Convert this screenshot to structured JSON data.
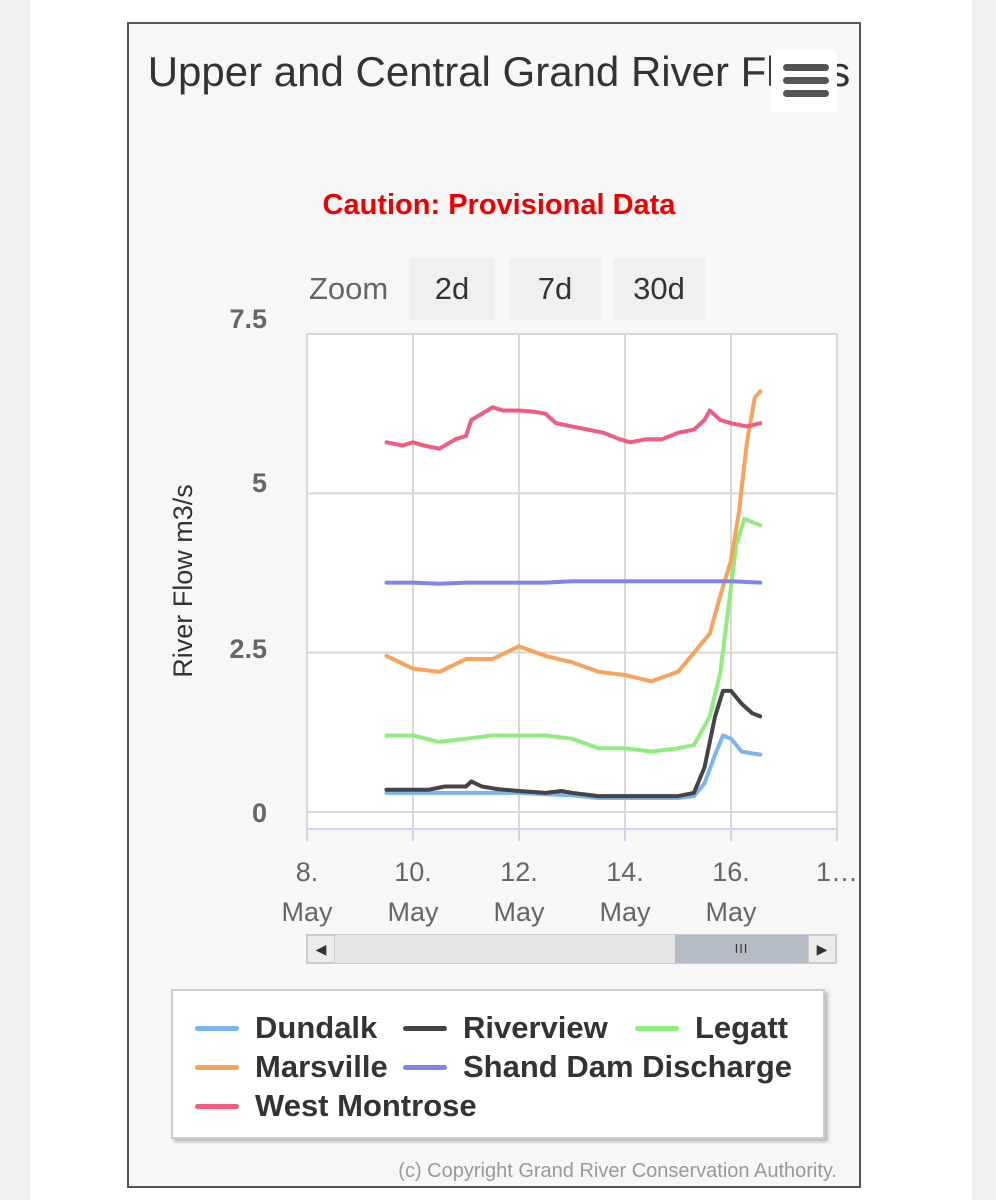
{
  "chart_data": {
    "type": "line",
    "title": "Upper and Central Grand River Flows",
    "subtitle": "Caution: Provisional Data",
    "ylabel": "River Flow m3/s",
    "xlabel": "",
    "ylim": [
      0,
      7.5
    ],
    "xlim": [
      "8. May",
      "18. May"
    ],
    "grid": true,
    "legend": "bottom",
    "y_ticks": [
      "0",
      "2.5",
      "5",
      "7.5"
    ],
    "x_ticks": [
      {
        "day": 8,
        "line1": "8.",
        "line2": "May"
      },
      {
        "day": 10,
        "line1": "10.",
        "line2": "May"
      },
      {
        "day": 12,
        "line1": "12.",
        "line2": "May"
      },
      {
        "day": 14,
        "line1": "14.",
        "line2": "May"
      },
      {
        "day": 16,
        "line1": "16.",
        "line2": "May"
      },
      {
        "day": 18,
        "line1": "1…",
        "line2": ""
      }
    ],
    "series": [
      {
        "name": "Dundalk",
        "color": "#7cb5ec",
        "x": [
          9.5,
          10.0,
          10.5,
          11.0,
          11.5,
          12.0,
          12.5,
          13.0,
          13.5,
          14.0,
          14.5,
          15.0,
          15.3,
          15.5,
          15.7,
          15.85,
          16.0,
          16.2,
          16.4,
          16.55
        ],
        "y": [
          0.3,
          0.3,
          0.3,
          0.3,
          0.3,
          0.3,
          0.28,
          0.26,
          0.22,
          0.22,
          0.22,
          0.22,
          0.25,
          0.45,
          0.9,
          1.2,
          1.15,
          0.95,
          0.92,
          0.9
        ]
      },
      {
        "name": "Riverview",
        "color": "#434348",
        "x": [
          9.5,
          10.0,
          10.3,
          10.6,
          11.0,
          11.1,
          11.3,
          11.6,
          12.0,
          12.5,
          12.8,
          13.0,
          13.5,
          14.0,
          14.5,
          15.0,
          15.3,
          15.5,
          15.7,
          15.85,
          16.0,
          16.2,
          16.4,
          16.55
        ],
        "y": [
          0.35,
          0.35,
          0.35,
          0.4,
          0.4,
          0.48,
          0.4,
          0.36,
          0.33,
          0.3,
          0.33,
          0.3,
          0.25,
          0.25,
          0.25,
          0.25,
          0.3,
          0.7,
          1.5,
          1.9,
          1.9,
          1.7,
          1.55,
          1.5
        ]
      },
      {
        "name": "Legatt",
        "color": "#90ed7d",
        "x": [
          9.5,
          10.0,
          10.5,
          11.0,
          11.5,
          12.0,
          12.5,
          13.0,
          13.5,
          14.0,
          14.5,
          15.0,
          15.3,
          15.6,
          15.8,
          15.95,
          16.1,
          16.25,
          16.4,
          16.55
        ],
        "y": [
          1.2,
          1.2,
          1.1,
          1.15,
          1.2,
          1.2,
          1.2,
          1.15,
          1.0,
          1.0,
          0.95,
          1.0,
          1.05,
          1.5,
          2.2,
          3.2,
          4.2,
          4.6,
          4.55,
          4.5
        ]
      },
      {
        "name": "Marsville",
        "color": "#f7a35c",
        "x": [
          9.5,
          10.0,
          10.5,
          11.0,
          11.5,
          12.0,
          12.5,
          13.0,
          13.5,
          14.0,
          14.5,
          15.0,
          15.3,
          15.6,
          15.8,
          16.0,
          16.15,
          16.3,
          16.45,
          16.55
        ],
        "y": [
          2.45,
          2.25,
          2.2,
          2.4,
          2.4,
          2.6,
          2.45,
          2.35,
          2.2,
          2.15,
          2.05,
          2.2,
          2.5,
          2.8,
          3.4,
          3.95,
          4.7,
          5.8,
          6.5,
          6.6
        ]
      },
      {
        "name": "Shand Dam Discharge",
        "color": "#8085e9",
        "x": [
          9.5,
          10.0,
          10.5,
          11.0,
          11.5,
          12.0,
          12.5,
          13.0,
          13.5,
          14.0,
          14.5,
          15.0,
          15.5,
          16.0,
          16.55
        ],
        "y": [
          3.6,
          3.6,
          3.58,
          3.6,
          3.6,
          3.6,
          3.6,
          3.62,
          3.62,
          3.62,
          3.62,
          3.62,
          3.62,
          3.62,
          3.6
        ]
      },
      {
        "name": "West Montrose",
        "color": "#f15c80",
        "x": [
          9.5,
          9.8,
          10.0,
          10.2,
          10.5,
          10.8,
          11.0,
          11.1,
          11.3,
          11.5,
          11.7,
          12.0,
          12.3,
          12.5,
          12.7,
          13.0,
          13.3,
          13.6,
          13.9,
          14.1,
          14.4,
          14.7,
          15.0,
          15.3,
          15.5,
          15.6,
          15.8,
          16.0,
          16.3,
          16.55
        ],
        "y": [
          5.8,
          5.75,
          5.8,
          5.75,
          5.7,
          5.85,
          5.9,
          6.15,
          6.25,
          6.35,
          6.3,
          6.3,
          6.28,
          6.25,
          6.1,
          6.05,
          6.0,
          5.95,
          5.85,
          5.8,
          5.85,
          5.85,
          5.95,
          6.0,
          6.15,
          6.3,
          6.15,
          6.1,
          6.05,
          6.1
        ]
      }
    ]
  },
  "menu": {
    "icon": "hamburger-menu-icon"
  },
  "zoom": {
    "label": "Zoom",
    "buttons": [
      "2d",
      "7d",
      "30d"
    ]
  },
  "navigator": {
    "left_arrow": "◀",
    "right_arrow": "▶",
    "thumb_grip": "III"
  },
  "credits": "(c) Copyright Grand River Conservation Authority."
}
